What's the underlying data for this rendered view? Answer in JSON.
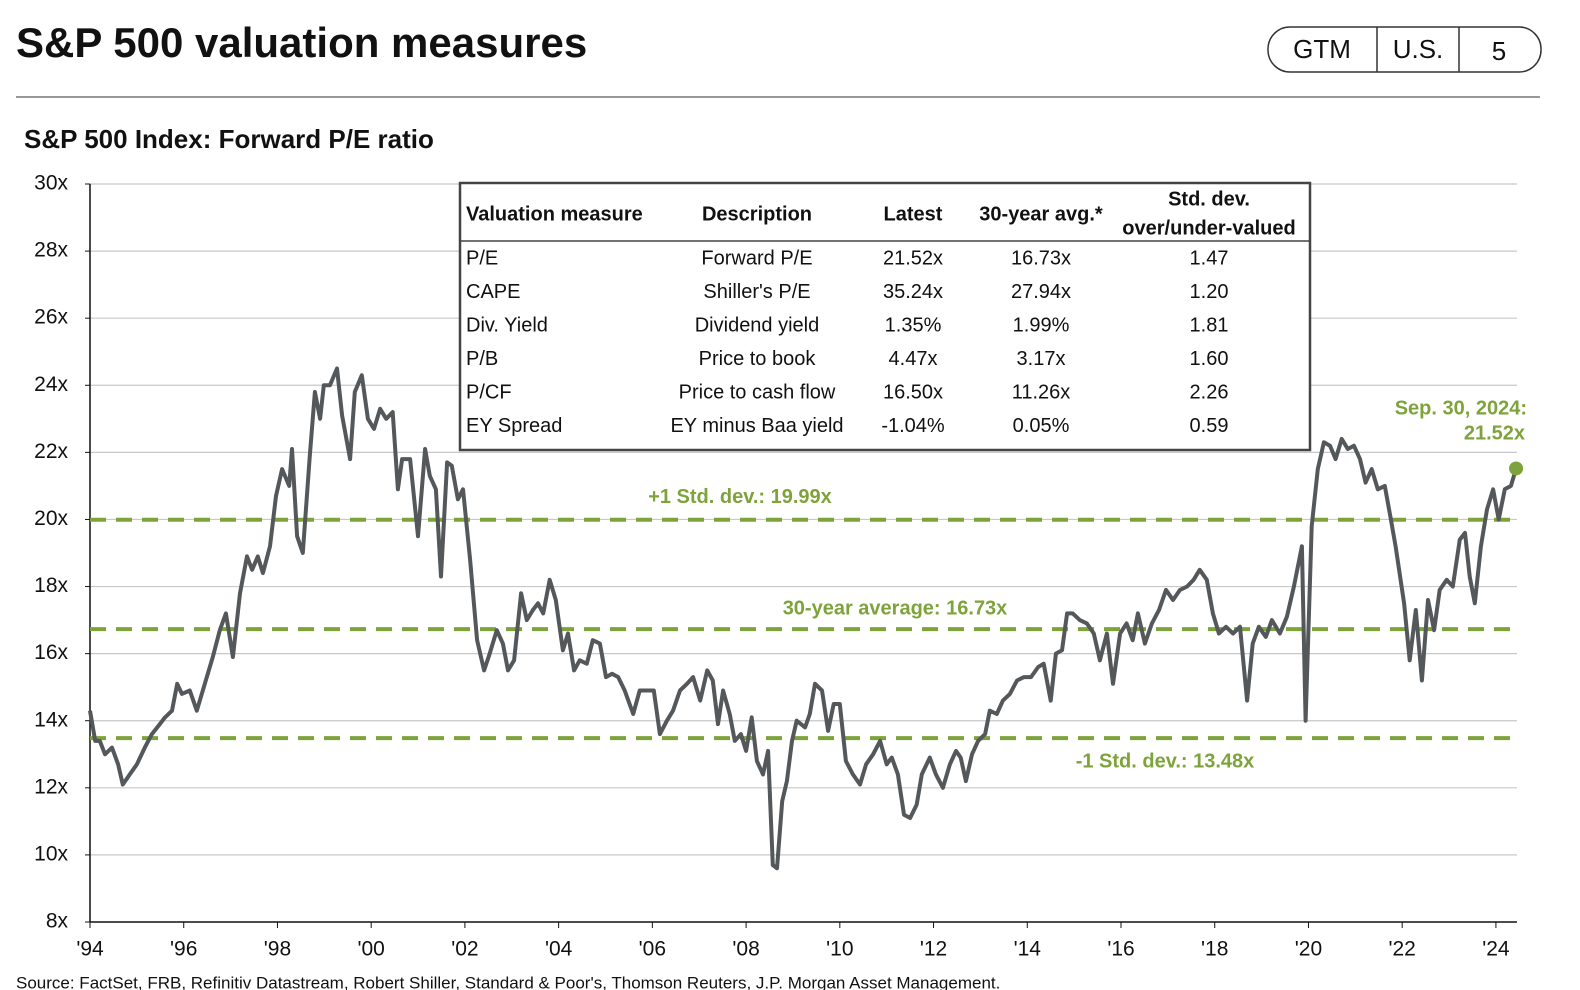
{
  "header": {
    "title": "S&P 500 valuation measures",
    "badges": [
      "GTM",
      "U.S.",
      "5"
    ]
  },
  "chart_data": {
    "type": "line",
    "title": "S&P 500 Index: Forward P/E ratio",
    "x": [
      1994.0,
      1994.11,
      1994.21,
      1994.32,
      1994.47,
      1994.6,
      1994.7,
      1994.85,
      1995.0,
      1995.17,
      1995.32,
      1995.49,
      1995.6,
      1995.75,
      1995.86,
      1995.96,
      1996.13,
      1996.28,
      1996.45,
      1996.62,
      1996.77,
      1996.9,
      1997.05,
      1997.2,
      1997.35,
      1997.46,
      1997.58,
      1997.69,
      1997.84,
      1997.97,
      1998.1,
      1998.25,
      1998.31,
      1998.42,
      1998.54,
      1998.69,
      1998.8,
      1998.91,
      1998.99,
      1999.12,
      1999.27,
      1999.38,
      1999.55,
      1999.65,
      1999.8,
      1999.93,
      2000.06,
      2000.19,
      2000.32,
      2000.46,
      2000.57,
      2000.66,
      2000.83,
      2001.0,
      2001.15,
      2001.25,
      2001.38,
      2001.49,
      2001.62,
      2001.72,
      2001.85,
      2001.96,
      2002.11,
      2002.26,
      2002.41,
      2002.53,
      2002.68,
      2002.81,
      2002.92,
      2003.05,
      2003.2,
      2003.32,
      2003.45,
      2003.56,
      2003.67,
      2003.81,
      2003.94,
      2004.09,
      2004.2,
      2004.33,
      2004.45,
      2004.6,
      2004.73,
      2004.88,
      2005.01,
      2005.14,
      2005.27,
      2005.41,
      2005.59,
      2005.73,
      2005.88,
      2006.03,
      2006.16,
      2006.31,
      2006.44,
      2006.59,
      2006.74,
      2006.87,
      2007.02,
      2007.17,
      2007.29,
      2007.4,
      2007.51,
      2007.65,
      2007.76,
      2007.89,
      2008.0,
      2008.12,
      2008.23,
      2008.36,
      2008.47,
      2008.57,
      2008.66,
      2008.77,
      2008.87,
      2008.98,
      2009.08,
      2009.26,
      2009.36,
      2009.47,
      2009.62,
      2009.75,
      2009.87,
      2010.0,
      2010.13,
      2010.28,
      2010.43,
      2010.56,
      2010.71,
      2010.86,
      2011.0,
      2011.11,
      2011.24,
      2011.37,
      2011.5,
      2011.64,
      2011.75,
      2011.92,
      2012.05,
      2012.2,
      2012.35,
      2012.48,
      2012.58,
      2012.69,
      2012.82,
      2012.95,
      2013.1,
      2013.2,
      2013.35,
      2013.48,
      2013.63,
      2013.78,
      2013.93,
      2014.08,
      2014.23,
      2014.35,
      2014.5,
      2014.61,
      2014.74,
      2014.85,
      2014.97,
      2015.12,
      2015.27,
      2015.42,
      2015.55,
      2015.7,
      2015.83,
      2015.98,
      2016.12,
      2016.25,
      2016.36,
      2016.51,
      2016.66,
      2016.81,
      2016.96,
      2017.11,
      2017.26,
      2017.41,
      2017.55,
      2017.68,
      2017.83,
      2017.96,
      2018.09,
      2018.24,
      2018.39,
      2018.54,
      2018.69,
      2018.81,
      2018.94,
      2019.09,
      2019.22,
      2019.39,
      2019.54,
      2019.69,
      2019.86,
      2019.94,
      2020.07,
      2020.2,
      2020.33,
      2020.46,
      2020.58,
      2020.71,
      2020.84,
      2020.97,
      2021.1,
      2021.22,
      2021.35,
      2021.48,
      2021.63,
      2021.76,
      2021.86,
      2022.04,
      2022.16,
      2022.29,
      2022.42,
      2022.55,
      2022.68,
      2022.8,
      2022.95,
      2023.08,
      2023.23,
      2023.34,
      2023.44,
      2023.55,
      2023.68,
      2023.81,
      2023.94,
      2024.06,
      2024.19,
      2024.32,
      2024.43
    ],
    "series": [
      {
        "color": "#54585a",
        "values": [
          14.3,
          13.4,
          13.4,
          13.0,
          13.2,
          12.7,
          12.1,
          12.4,
          12.7,
          13.2,
          13.6,
          13.9,
          14.1,
          14.3,
          15.1,
          14.8,
          14.9,
          14.3,
          15.1,
          15.9,
          16.7,
          17.2,
          15.9,
          17.8,
          18.9,
          18.5,
          18.9,
          18.4,
          19.2,
          20.7,
          21.5,
          21.0,
          22.1,
          19.5,
          19.0,
          21.9,
          23.8,
          23.0,
          24.0,
          24.0,
          24.5,
          23.1,
          21.8,
          23.8,
          24.3,
          23.0,
          22.7,
          23.3,
          23.0,
          23.2,
          20.9,
          21.8,
          21.8,
          19.5,
          22.1,
          21.3,
          20.9,
          18.3,
          21.7,
          21.6,
          20.6,
          20.9,
          18.8,
          16.4,
          15.5,
          16.0,
          16.7,
          16.3,
          15.5,
          15.8,
          17.8,
          17.0,
          17.3,
          17.5,
          17.2,
          18.2,
          17.6,
          16.1,
          16.6,
          15.5,
          15.8,
          15.7,
          16.4,
          16.3,
          15.3,
          15.4,
          15.3,
          14.9,
          14.2,
          14.9,
          14.9,
          14.9,
          13.6,
          14.0,
          14.3,
          14.9,
          15.1,
          15.3,
          14.6,
          15.5,
          15.2,
          13.9,
          14.9,
          14.2,
          13.4,
          13.6,
          13.1,
          14.1,
          12.8,
          12.4,
          13.1,
          9.7,
          9.6,
          11.6,
          12.2,
          13.4,
          14.0,
          13.8,
          14.2,
          15.1,
          14.9,
          13.7,
          14.5,
          14.5,
          12.8,
          12.4,
          12.1,
          12.7,
          13.0,
          13.4,
          12.7,
          12.9,
          12.4,
          11.2,
          11.1,
          11.5,
          12.4,
          12.9,
          12.4,
          12.0,
          12.7,
          13.1,
          12.9,
          12.2,
          13.0,
          13.4,
          13.6,
          14.3,
          14.2,
          14.6,
          14.8,
          15.2,
          15.3,
          15.3,
          15.6,
          15.7,
          14.6,
          16.0,
          16.1,
          17.2,
          17.2,
          17.0,
          16.9,
          16.6,
          15.8,
          16.6,
          15.1,
          16.6,
          16.9,
          16.4,
          17.2,
          16.3,
          16.9,
          17.3,
          17.9,
          17.6,
          17.9,
          18.0,
          18.2,
          18.5,
          18.2,
          17.2,
          16.6,
          16.8,
          16.6,
          16.8,
          14.6,
          16.3,
          16.8,
          16.5,
          17.0,
          16.6,
          17.1,
          18.0,
          19.2,
          14.0,
          19.8,
          21.5,
          22.3,
          22.2,
          21.8,
          22.4,
          22.1,
          22.2,
          21.8,
          21.1,
          21.5,
          20.9,
          21.0,
          20.0,
          19.2,
          17.5,
          15.8,
          17.3,
          15.2,
          17.6,
          16.7,
          17.9,
          18.2,
          18.0,
          19.4,
          19.6,
          18.3,
          17.5,
          19.2,
          20.3,
          20.9,
          20.0,
          20.9,
          21.0,
          21.52
        ]
      }
    ],
    "reference_lines": [
      {
        "value": 19.99,
        "label": "+1 Std. dev.: 19.99x"
      },
      {
        "value": 16.73,
        "label": "30-year average: 16.73x"
      },
      {
        "value": 13.48,
        "label": "-1 Std. dev.: 13.48x"
      }
    ],
    "reference_color": "#7ea33b",
    "annotation": [
      "Sep. 30, 2024:",
      "21.52x"
    ],
    "xlim": [
      1994,
      2024.45
    ],
    "xticks": [
      {
        "value": 1994,
        "label": "'94"
      },
      {
        "value": 1996,
        "label": "'96"
      },
      {
        "value": 1998,
        "label": "'98"
      },
      {
        "value": 2000,
        "label": "'00"
      },
      {
        "value": 2002,
        "label": "'02"
      },
      {
        "value": 2004,
        "label": "'04"
      },
      {
        "value": 2006,
        "label": "'06"
      },
      {
        "value": 2008,
        "label": "'08"
      },
      {
        "value": 2010,
        "label": "'10"
      },
      {
        "value": 2012,
        "label": "'12"
      },
      {
        "value": 2014,
        "label": "'14"
      },
      {
        "value": 2016,
        "label": "'16"
      },
      {
        "value": 2018,
        "label": "'18"
      },
      {
        "value": 2020,
        "label": "'20"
      },
      {
        "value": 2022,
        "label": "'22"
      },
      {
        "value": 2024,
        "label": "'24"
      }
    ],
    "ylim": [
      8,
      30
    ],
    "yticks": [
      {
        "value": 8,
        "label": "8x"
      },
      {
        "value": 10,
        "label": "10x"
      },
      {
        "value": 12,
        "label": "12x"
      },
      {
        "value": 14,
        "label": "14x"
      },
      {
        "value": 16,
        "label": "16x"
      },
      {
        "value": 18,
        "label": "18x"
      },
      {
        "value": 20,
        "label": "20x"
      },
      {
        "value": 22,
        "label": "22x"
      },
      {
        "value": 24,
        "label": "24x"
      },
      {
        "value": 26,
        "label": "26x"
      },
      {
        "value": 28,
        "label": "28x"
      },
      {
        "value": 30,
        "label": "30x"
      }
    ],
    "grid": true
  },
  "table": {
    "headers": [
      "Valuation measure",
      "Description",
      "Latest",
      "30-year avg.*",
      [
        "Std. dev.",
        "over/under-valued"
      ]
    ],
    "rows": [
      [
        "P/E",
        "Forward P/E",
        "21.52x",
        "16.73x",
        "1.47"
      ],
      [
        "CAPE",
        "Shiller's P/E",
        "35.24x",
        "27.94x",
        "1.20"
      ],
      [
        "Div. Yield",
        "Dividend yield",
        "1.35%",
        "1.99%",
        "1.81"
      ],
      [
        "P/B",
        "Price to book",
        "4.47x",
        "3.17x",
        "1.60"
      ],
      [
        "P/CF",
        "Price to cash flow",
        "16.50x",
        "11.26x",
        "2.26"
      ],
      [
        "EY Spread",
        "EY minus Baa yield",
        "-1.04%",
        "0.05%",
        "0.59"
      ]
    ]
  },
  "footer": {
    "source": "Source: FactSet, FRB, Refinitiv Datastream, Robert Shiller, Standard & Poor's, Thomson Reuters, J.P. Morgan Asset Management."
  }
}
